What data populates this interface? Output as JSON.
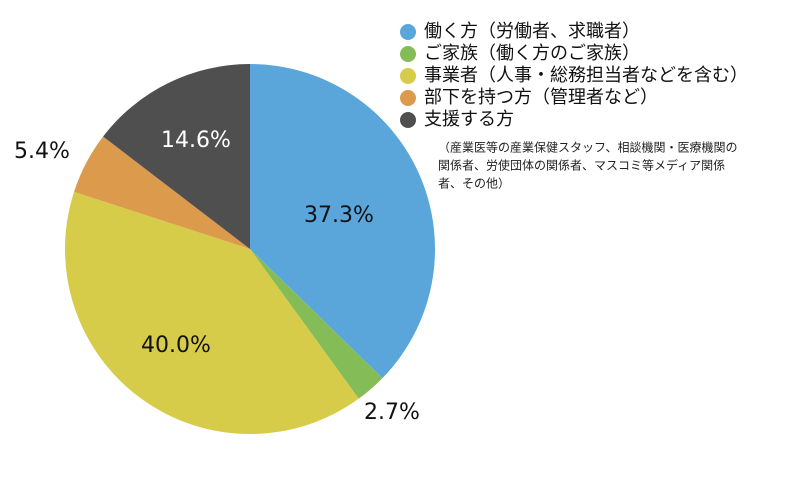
{
  "chart_data": {
    "type": "pie",
    "title": "",
    "categories": [
      "働く方（労働者、求職者）",
      "ご家族（働く方のご家族）",
      "事業者（人事・総務担当者などを含む）",
      "部下を持つ方（管理者など）",
      "支援する方"
    ],
    "values": [
      37.3,
      2.7,
      40.0,
      5.4,
      14.6
    ],
    "value_labels": [
      "37.3%",
      "2.7%",
      "40.0%",
      "5.4%",
      "14.6%"
    ],
    "colors": [
      "#5aa6db",
      "#84bd57",
      "#d7cc4a",
      "#dc9a4d",
      "#4f4f4f"
    ],
    "label_colors": [
      "#111111",
      "#111111",
      "#111111",
      "#111111",
      "#ffffff"
    ],
    "start_angle": "12 o'clock",
    "direction": "clockwise",
    "legend_position": "top-right",
    "legend_note": [
      "（産業医等の産業保健スタッフ、相談機関・医療機関の",
      "関係者、労使団体の関係者、マスコミ等メディア関係",
      "者、その他）"
    ]
  }
}
